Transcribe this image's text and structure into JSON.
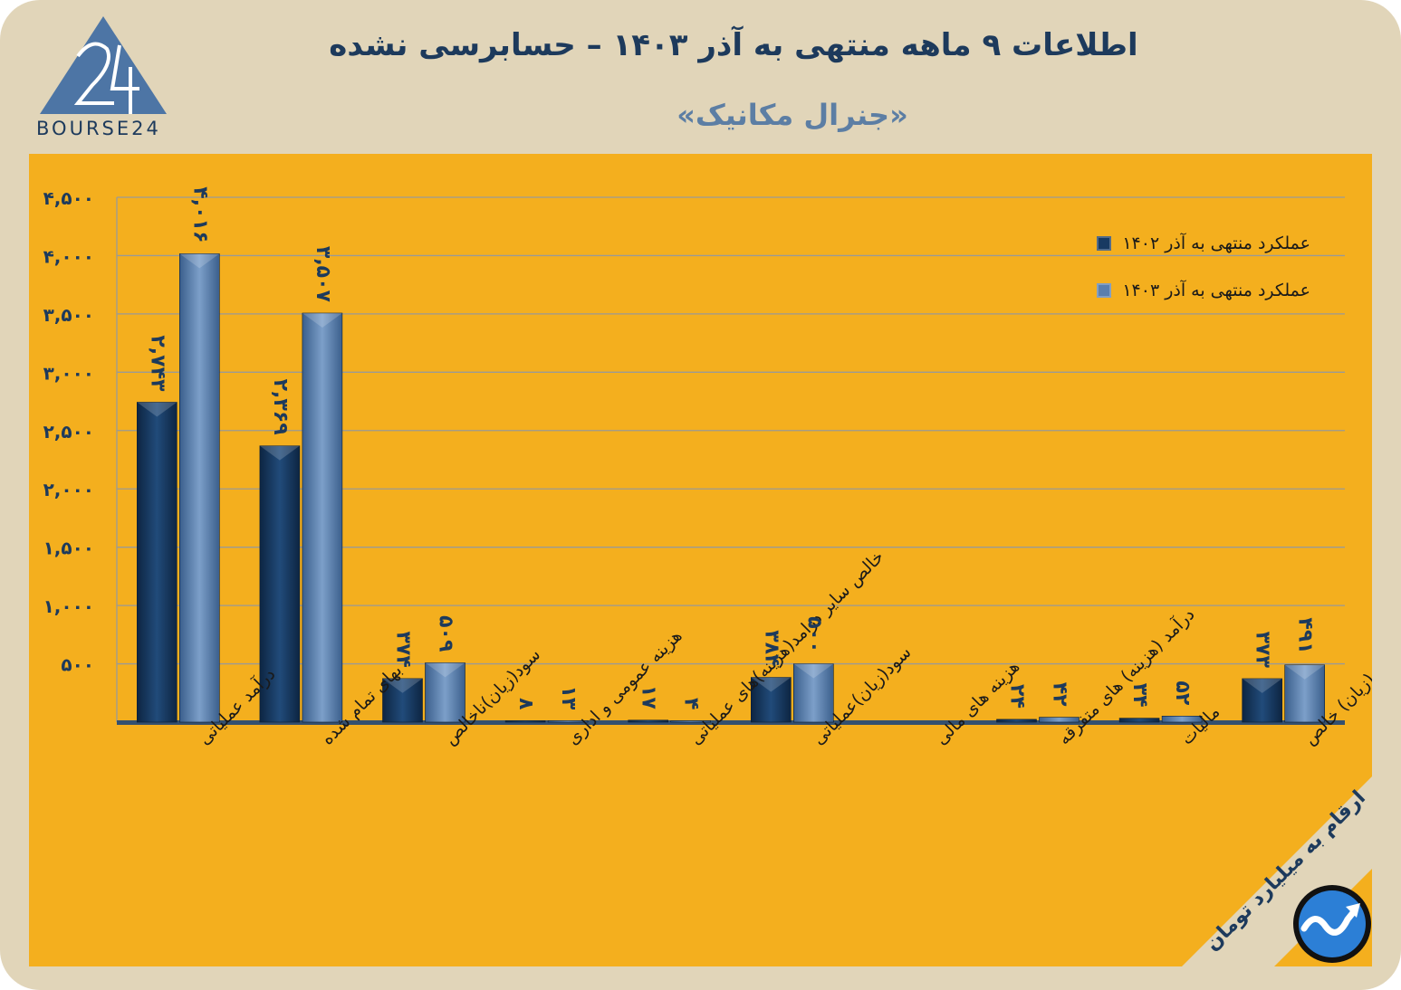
{
  "header": {
    "title": "اطلاعات ۹ ماهه منتهی به آذر ۱۴۰۳ – حسابرسی نشده",
    "subtitle": "«جنرال مکانیک»",
    "logo_text": "BOURSE24"
  },
  "note": "ارقام به میلیارد تومان",
  "colors": {
    "background": "#e1d5b9",
    "panel": "#f4af1e",
    "title": "#1d3a5c",
    "subtitle": "#5c7ea4",
    "series_1402": "#183a62",
    "series_1403": "#5a7fae"
  },
  "icons": [
    "logo-mark",
    "trend-arrow-icon"
  ],
  "chart_data": {
    "type": "bar",
    "categories": [
      "درآمد عملیاتی",
      "بهای تمام شده",
      "سود(زیان)ناخالص",
      "هزینه عمومی و اداری",
      "خالص سایر درامد(هزینه)های عملیاتی",
      "سود(زیان)عملیاتی",
      "هزینه های مالی",
      "درآمد (هزینه) های متفرقه",
      "مالیات",
      "سود(زیان) خالص"
    ],
    "series": [
      {
        "name": "عملکرد منتهی به آذر ۱۴۰۲",
        "values": [
          2743,
          2369,
          374,
          8,
          17,
          384,
          0,
          24,
          34,
          373
        ],
        "labels": [
          "۲,۷۴۳",
          "۲,۳۶۹",
          "۳۷۴",
          "۸",
          "۱۷",
          "۳۸۴",
          "",
          "۲۴",
          "۳۴",
          "۳۷۳"
        ]
      },
      {
        "name": "عملکرد منتهی به آذر ۱۴۰۳",
        "values": [
          4016,
          3507,
          509,
          13,
          4,
          500,
          0,
          42,
          52,
          491
        ],
        "labels": [
          "۴,۰۱۶",
          "۳,۵۰۷",
          "۵۰۹",
          "۱۳",
          "۴",
          "۵۰۰",
          "",
          "۴۲",
          "۵۲",
          "۴۹۱"
        ]
      }
    ],
    "y_ticks": [
      500,
      1000,
      1500,
      2000,
      2500,
      3000,
      3500,
      4000,
      4500
    ],
    "y_tick_labels": [
      "۵۰۰",
      "۱,۰۰۰",
      "۱,۵۰۰",
      "۲,۰۰۰",
      "۲,۵۰۰",
      "۳,۰۰۰",
      "۳,۵۰۰",
      "۴,۰۰۰",
      "۴,۵۰۰"
    ],
    "ylim": [
      0,
      4500
    ],
    "grid": true,
    "legend": "top-right"
  }
}
